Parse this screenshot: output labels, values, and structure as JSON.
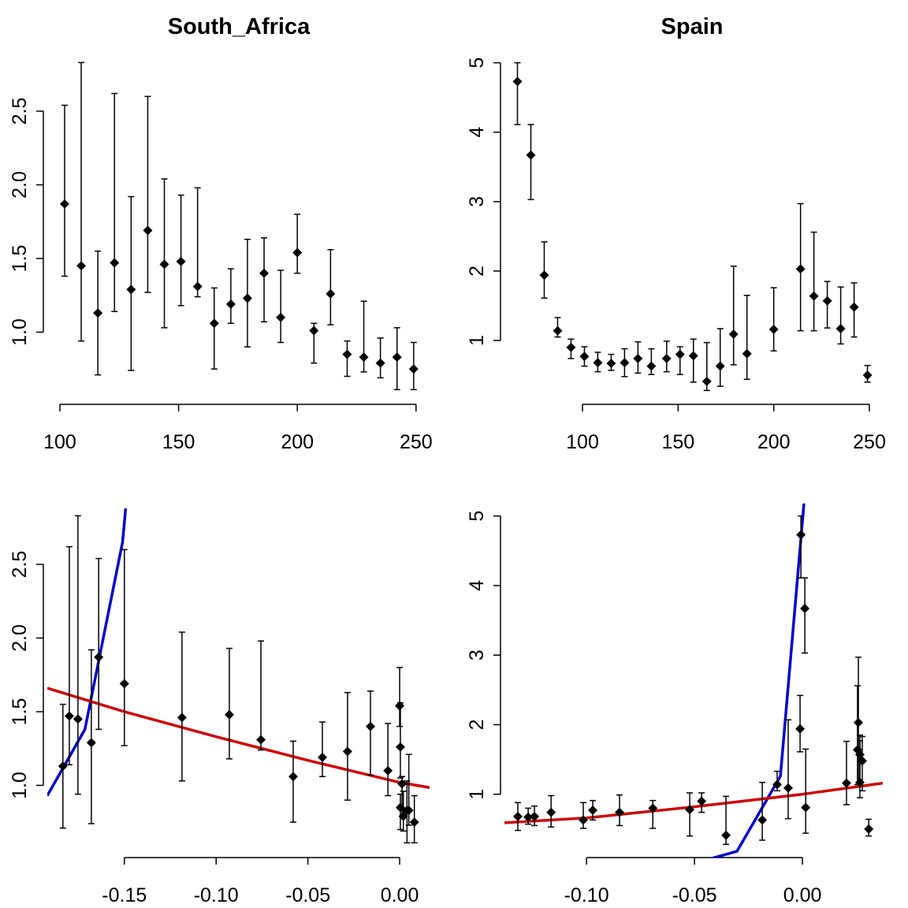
{
  "chart_data": [
    {
      "type": "errorbar",
      "title": "South_Africa",
      "color": "#000000",
      "x": [
        102,
        109,
        116,
        123,
        130,
        137,
        144,
        151,
        158,
        165,
        172,
        179,
        186,
        193,
        200,
        207,
        214,
        221,
        228,
        235,
        242,
        249
      ],
      "values": [
        1.87,
        1.45,
        1.13,
        1.47,
        1.29,
        1.69,
        1.46,
        1.48,
        1.31,
        1.06,
        1.19,
        1.23,
        1.4,
        1.1,
        1.54,
        1.01,
        1.26,
        0.85,
        0.83,
        0.79,
        0.83,
        0.75
      ],
      "lower": [
        1.38,
        0.94,
        0.71,
        1.14,
        0.74,
        1.27,
        1.03,
        1.18,
        1.24,
        0.75,
        1.06,
        0.9,
        1.07,
        0.93,
        1.4,
        0.79,
        1.05,
        0.7,
        0.73,
        0.69,
        0.61,
        0.61
      ],
      "upper": [
        2.54,
        2.83,
        1.55,
        2.62,
        1.92,
        2.6,
        2.04,
        1.93,
        1.98,
        1.3,
        1.43,
        1.63,
        1.64,
        1.42,
        1.8,
        1.06,
        1.56,
        0.94,
        1.21,
        0.96,
        1.03,
        0.93
      ],
      "xlim": [
        94.7,
        255.7
      ],
      "ylim": [
        0.51,
        2.88
      ],
      "xticks": [
        100,
        150,
        200,
        250
      ],
      "yticks": [
        {
          "value": 1.0,
          "label": "1.0"
        },
        1.5,
        {
          "value": 2.0,
          "label": "2.0"
        },
        2.5
      ]
    },
    {
      "type": "errorbar",
      "title": "Spain",
      "color": "#000000",
      "x": [
        66,
        73,
        80,
        87,
        94,
        101,
        108,
        115,
        122,
        129,
        136,
        144,
        151,
        158,
        165,
        172,
        179,
        186,
        200,
        214,
        221,
        228,
        235,
        242,
        249
      ],
      "values": [
        4.73,
        3.67,
        1.94,
        1.14,
        0.9,
        0.77,
        0.68,
        0.67,
        0.68,
        0.74,
        0.63,
        0.74,
        0.8,
        0.78,
        0.41,
        0.63,
        1.09,
        0.81,
        1.16,
        2.03,
        1.64,
        1.57,
        1.17,
        1.48,
        0.5
      ],
      "lower": [
        4.11,
        3.03,
        1.61,
        1.05,
        0.74,
        0.63,
        0.55,
        0.57,
        0.48,
        0.53,
        0.51,
        0.55,
        0.51,
        0.4,
        0.28,
        0.34,
        0.65,
        0.44,
        0.85,
        1.14,
        1.14,
        1.18,
        0.95,
        1.05,
        0.4
      ],
      "upper": [
        5.0,
        4.11,
        2.42,
        1.33,
        1.02,
        0.91,
        0.83,
        0.8,
        0.88,
        0.98,
        0.88,
        0.99,
        0.91,
        1.02,
        0.97,
        1.17,
        2.07,
        1.65,
        1.76,
        2.97,
        2.56,
        1.85,
        1.77,
        1.83,
        0.64
      ],
      "xlim": [
        59.2,
        257
      ],
      "ylim": [
        0.08,
        5.2
      ],
      "xticks": [
        100,
        150,
        200,
        250
      ],
      "yticks": [
        1,
        2,
        3,
        4,
        5
      ]
    },
    {
      "type": "errorbar",
      "color": "#000000",
      "x": [
        -0.164,
        -0.1753,
        -0.1835,
        -0.18,
        -0.168,
        -0.15,
        -0.1186,
        -0.0928,
        -0.0756,
        -0.058,
        -0.0421,
        -0.0284,
        -0.0159,
        -0.0064,
        0.0,
        0.0013,
        0.0004,
        0.0004,
        0.005,
        0.002,
        0.004,
        0.008
      ],
      "values": [
        1.87,
        1.45,
        1.13,
        1.47,
        1.29,
        1.69,
        1.46,
        1.48,
        1.31,
        1.06,
        1.19,
        1.23,
        1.4,
        1.1,
        1.54,
        1.01,
        1.26,
        0.85,
        0.83,
        0.79,
        0.83,
        0.75
      ],
      "lower": [
        1.38,
        0.94,
        0.71,
        1.14,
        0.74,
        1.27,
        1.03,
        1.18,
        1.24,
        0.75,
        1.06,
        0.9,
        1.07,
        0.93,
        1.4,
        0.79,
        1.05,
        0.7,
        0.73,
        0.69,
        0.61,
        0.61
      ],
      "upper": [
        2.54,
        2.83,
        1.55,
        2.62,
        1.92,
        2.6,
        2.04,
        1.93,
        1.98,
        1.3,
        1.43,
        1.63,
        1.64,
        1.42,
        1.8,
        1.06,
        1.56,
        0.94,
        1.21,
        0.96,
        1.03,
        0.93
      ],
      "fits": [
        {
          "color": "#0000cc",
          "x": [
            -0.192,
            -0.1715,
            -0.151,
            -0.149
          ],
          "values": [
            0.93,
            1.38,
            2.65,
            2.92
          ]
        },
        {
          "color": "#cc0000",
          "x": [
            -0.192,
            -0.15,
            -0.1,
            -0.05,
            0,
            0.0163
          ],
          "values": [
            1.66,
            1.5,
            1.33,
            1.17,
            1.02,
            0.985
          ]
        }
      ],
      "xlim": [
        -0.192,
        0.0163
      ],
      "ylim": [
        0.51,
        2.88
      ],
      "xticks": [
        -0.15,
        {
          "value": -0.1,
          "label": "-0.10"
        },
        -0.05,
        {
          "value": 0.0,
          "label": "0.00"
        }
      ],
      "yticks": [
        {
          "value": 1.0,
          "label": "1.0"
        },
        1.5,
        {
          "value": 2.0,
          "label": "2.0"
        },
        2.5
      ]
    },
    {
      "type": "errorbar",
      "color": "#000000",
      "x": [
        -0.0007,
        0.0011,
        -0.0011,
        -0.0117,
        -0.0467,
        -0.0971,
        -0.1241,
        -0.127,
        -0.1318,
        -0.1164,
        -0.1015,
        -0.0847,
        -0.0693,
        -0.0522,
        -0.0354,
        -0.0186,
        -0.0066,
        0.0015,
        0.0204,
        0.0259,
        0.0255,
        0.0266,
        0.0266,
        0.0277,
        0.0307
      ],
      "values": [
        4.73,
        3.67,
        1.94,
        1.14,
        0.9,
        0.77,
        0.68,
        0.67,
        0.68,
        0.74,
        0.63,
        0.74,
        0.8,
        0.78,
        0.41,
        0.63,
        1.09,
        0.81,
        1.16,
        2.03,
        1.64,
        1.57,
        1.17,
        1.48,
        0.5
      ],
      "lower": [
        4.11,
        3.03,
        1.61,
        1.05,
        0.74,
        0.63,
        0.55,
        0.57,
        0.48,
        0.53,
        0.51,
        0.55,
        0.51,
        0.4,
        0.28,
        0.34,
        0.65,
        0.44,
        0.85,
        1.14,
        1.14,
        1.18,
        0.95,
        1.05,
        0.4
      ],
      "upper": [
        5.0,
        4.11,
        2.42,
        1.33,
        1.02,
        0.91,
        0.83,
        0.8,
        0.88,
        0.98,
        0.88,
        0.99,
        0.91,
        1.02,
        0.97,
        1.17,
        2.07,
        1.65,
        1.76,
        2.97,
        2.56,
        1.85,
        1.77,
        1.83,
        0.64
      ],
      "fits": [
        {
          "color": "#0000cc",
          "x": [
            -0.043,
            -0.0303,
            -0.0102,
            0.0007
          ],
          "values": [
            0.07,
            0.18,
            1.26,
            5.18
          ]
        },
        {
          "color": "#cc0000",
          "x": [
            -0.138,
            -0.1,
            -0.05,
            0,
            0.0372
          ],
          "values": [
            0.59,
            0.66,
            0.82,
            1.0,
            1.16
          ]
        }
      ],
      "xlim": [
        -0.138,
        0.0372
      ],
      "ylim": [
        0.09,
        5.2
      ],
      "xticks": [
        {
          "value": -0.1,
          "label": "-0.10"
        },
        -0.05,
        {
          "value": 0.0,
          "label": "0.00"
        }
      ],
      "yticks": [
        1,
        2,
        3,
        4,
        5
      ]
    }
  ]
}
